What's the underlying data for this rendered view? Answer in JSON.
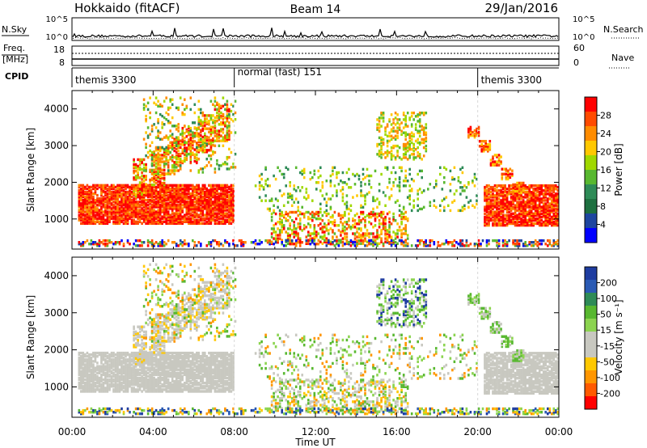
{
  "header": {
    "station": "Hokkaido (fitACF)",
    "beam": "Beam 14",
    "date": "29/Jan/2016"
  },
  "nsky_panel": {
    "left_label": "N.Sky",
    "right_label": "N.Search",
    "left_ticks": [
      "10^5",
      "10^0"
    ],
    "right_ticks": [
      "10^5",
      "10^0"
    ]
  },
  "freq_panel": {
    "label_top": "Freq.",
    "label_bottom": "[MHz]",
    "left_ticks": [
      "18",
      "8"
    ],
    "right_ticks": [
      "60",
      "0"
    ],
    "right_label": "Nave"
  },
  "cpid_panel": {
    "label": "CPID",
    "segments": [
      {
        "label": "themis 3300",
        "start_hour": 0,
        "end_hour": 8
      },
      {
        "label": "normal (fast) 151",
        "start_hour": 8,
        "end_hour": 20
      },
      {
        "label": "themis 3300",
        "start_hour": 20,
        "end_hour": 24
      }
    ]
  },
  "chart_data": [
    {
      "type": "heatmap",
      "ylabel": "Slant Range [km]",
      "ylim": [
        180,
        4500
      ],
      "yticks": [
        "1000",
        "2000",
        "3000",
        "4000"
      ],
      "xlim": [
        "00:00",
        "24:00"
      ],
      "colorbar": {
        "label": "Power [dB]",
        "ticks": [
          "28",
          "24",
          "20",
          "16",
          "12",
          "8",
          "4"
        ],
        "colors": [
          "#ff0000",
          "#ff4b00",
          "#ff8c00",
          "#ffc800",
          "#a0d800",
          "#58b830",
          "#2e8b57",
          "#1e7040",
          "#1e46a0",
          "#0000ff"
        ]
      },
      "features": [
        {
          "start_hour": 0.3,
          "end_hour": 8.0,
          "range_km": [
            850,
            1900
          ],
          "dominant": "high power (red/orange)"
        },
        {
          "start_hour": 9.8,
          "end_hour": 16.5,
          "range_km": [
            300,
            1200
          ],
          "dominant": "mixed"
        },
        {
          "start_hour": 19.5,
          "end_hour": 24.0,
          "range_km": [
            800,
            3200
          ],
          "dominant": "high power (red/orange)"
        }
      ]
    },
    {
      "type": "heatmap",
      "ylabel": "Slant Range [km]",
      "ylim": [
        180,
        4500
      ],
      "yticks": [
        "1000",
        "2000",
        "3000",
        "4000"
      ],
      "xlim": [
        "00:00",
        "24:00"
      ],
      "xlabel": "Time UT",
      "xticks": [
        "00:00",
        "04:00",
        "08:00",
        "12:00",
        "16:00",
        "20:00",
        "00:00"
      ],
      "colorbar": {
        "label": "Velocity [m s⁻¹]",
        "ticks": [
          "200",
          "100",
          "50",
          "15",
          "-15",
          "-50",
          "-100",
          "-200"
        ],
        "colors": [
          "#1e3ca0",
          "#2a5ab4",
          "#2e8b57",
          "#58b830",
          "#8cd450",
          "#c8c8c0",
          "#c8c8c0",
          "#ffc800",
          "#ff9600",
          "#ff5a00",
          "#ff0000"
        ]
      },
      "features": [
        {
          "start_hour": 0.3,
          "end_hour": 8.0,
          "range_km": [
            850,
            2000
          ],
          "dominant": "grey (|v|<15)"
        },
        {
          "start_hour": 20.0,
          "end_hour": 22.0,
          "range_km": [
            1800,
            3200
          ],
          "dominant": "green (positive)"
        }
      ]
    }
  ]
}
